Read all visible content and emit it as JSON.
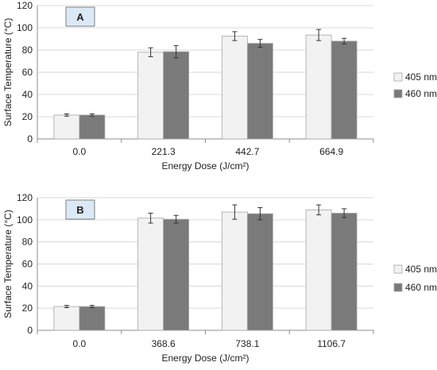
{
  "colors": {
    "series_405": "#f2f2f2",
    "series_460": "#7a7a7a",
    "bar_outline": "#a6a6a6",
    "grid": "#d9d9d9",
    "axis": "#8c8c8c",
    "label_box_fill": "#dbe9f7",
    "label_box_stroke": "#7f7f7f"
  },
  "chart_data": [
    {
      "type": "bar",
      "panel_label": "A",
      "xlabel": "Energy Dose (J/cm²)",
      "ylabel": "Surface Temperature (°C)",
      "ylim": [
        0,
        120
      ],
      "yticks": [
        0,
        20,
        40,
        60,
        80,
        100,
        120
      ],
      "grid": true,
      "legend_position": "right",
      "categories": [
        "0.0",
        "221.3",
        "442.7",
        "664.9"
      ],
      "series": [
        {
          "name": "405 nm",
          "values": [
            21.5,
            78,
            92.5,
            93.5
          ],
          "errors": [
            1.0,
            4.0,
            4.0,
            5.0
          ]
        },
        {
          "name": "460 nm",
          "values": [
            21.5,
            78.5,
            86,
            88
          ],
          "errors": [
            1.0,
            5.5,
            3.5,
            2.5
          ]
        }
      ]
    },
    {
      "type": "bar",
      "panel_label": "B",
      "xlabel": "Energy Dose (J/cm²)",
      "ylabel": "Surface Temperature (°C)",
      "ylim": [
        0,
        120
      ],
      "yticks": [
        0,
        20,
        40,
        60,
        80,
        100,
        120
      ],
      "grid": true,
      "legend_position": "right",
      "categories": [
        "0.0",
        "368.6",
        "738.1",
        "1106.7"
      ],
      "series": [
        {
          "name": "405 nm",
          "values": [
            21.5,
            101.5,
            107,
            109
          ],
          "errors": [
            1.0,
            4.5,
            6.5,
            4.5
          ]
        },
        {
          "name": "460 nm",
          "values": [
            21.5,
            100.5,
            105.5,
            106
          ],
          "errors": [
            1.0,
            3.5,
            5.5,
            4.0
          ]
        }
      ]
    }
  ]
}
